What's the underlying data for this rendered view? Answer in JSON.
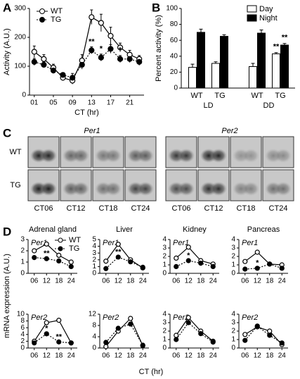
{
  "figure": {
    "panel_labels": [
      "A",
      "B",
      "C",
      "D"
    ],
    "panel_d_ylabel": "mRNA expression (A.U.)",
    "panel_d_xlabel": "CT (hr)"
  },
  "panel_c": {
    "genes": [
      "Per1",
      "Per2"
    ],
    "rows": [
      "WT",
      "TG"
    ],
    "times": [
      "CT06",
      "CT12",
      "CT18",
      "CT24"
    ]
  },
  "chart_data": [
    {
      "type": "line",
      "ylabel": "Activity (A.U.)",
      "xlabel": "CT (hr)",
      "x": [
        1,
        3,
        5,
        7,
        9,
        11,
        13,
        15,
        17,
        19,
        21,
        23
      ],
      "xlim": [
        0,
        24
      ],
      "xticks": [
        {
          "value": 1,
          "label": "01"
        },
        {
          "value": 5,
          "label": "05"
        },
        {
          "value": 9,
          "label": "09"
        },
        13,
        17,
        21
      ],
      "ylim": [
        0,
        300
      ],
      "yticks": [
        0,
        100,
        200,
        300
      ],
      "legend": true,
      "series": [
        {
          "name": "WT",
          "color": "#000000",
          "marker": "open",
          "line_style": "solid",
          "values": [
            150,
            125,
            95,
            60,
            50,
            120,
            270,
            250,
            205,
            165,
            140,
            125
          ],
          "errors": [
            20,
            15,
            12,
            10,
            12,
            20,
            25,
            30,
            30,
            15,
            15,
            12
          ]
        },
        {
          "name": "TG",
          "color": "#000000",
          "marker": "filled",
          "line_style": "dotted",
          "values": [
            115,
            105,
            85,
            70,
            60,
            105,
            155,
            130,
            160,
            125,
            125,
            115
          ],
          "errors": [
            12,
            10,
            10,
            8,
            15,
            15,
            12,
            12,
            15,
            12,
            12,
            12
          ]
        }
      ],
      "annotations": [
        {
          "x": 13,
          "text": "**"
        },
        {
          "x": 15,
          "text": "*"
        },
        {
          "x": 19,
          "text": "*"
        }
      ]
    },
    {
      "type": "bar",
      "ylabel": "Percent activity (%)",
      "categories": [
        "WT",
        "TG",
        "WT",
        "TG"
      ],
      "group_labels": [
        "LD",
        "DD"
      ],
      "ylim": [
        0,
        100
      ],
      "yticks": [
        0,
        20,
        40,
        60,
        80,
        100
      ],
      "legend": true,
      "series": [
        {
          "name": "Day",
          "color": "#ffffff",
          "values": [
            26,
            31,
            27,
            43
          ],
          "errors": [
            4,
            2,
            4,
            1.5
          ]
        },
        {
          "name": "Night",
          "color": "#000000",
          "values": [
            70,
            65,
            69,
            54
          ],
          "errors": [
            4,
            2,
            4,
            2
          ]
        }
      ],
      "annotations": [
        {
          "series": 0,
          "category": 3,
          "text": "**"
        },
        {
          "series": 1,
          "category": 3,
          "text": "**"
        }
      ]
    },
    {
      "type": "line",
      "title": "Adrenal gland",
      "gene": "Per1",
      "categories": [
        "06",
        "12",
        "18",
        "24"
      ],
      "ylim": [
        0,
        3
      ],
      "yticks": [
        0,
        1,
        2,
        3
      ],
      "legend": true,
      "series": [
        {
          "name": "WT",
          "color": "#000000",
          "marker": "open",
          "line_style": "solid",
          "values": [
            2.0,
            2.6,
            1.6,
            1.0
          ]
        },
        {
          "name": "TG",
          "color": "#000000",
          "marker": "filled",
          "line_style": "dotted",
          "values": [
            1.4,
            1.3,
            1.1,
            0.6
          ]
        }
      ],
      "annotations": [
        {
          "x": "12",
          "text": "**"
        }
      ]
    },
    {
      "type": "line",
      "title": "Liver",
      "gene": "Per1",
      "categories": [
        "06",
        "12",
        "18",
        "24"
      ],
      "ylim": [
        0,
        5
      ],
      "yticks": [
        0,
        1,
        2,
        3,
        4,
        5
      ],
      "series": [
        {
          "name": "WT",
          "color": "#000000",
          "marker": "open",
          "line_style": "solid",
          "values": [
            1.8,
            4.3,
            2.0,
            0.8
          ]
        },
        {
          "name": "TG",
          "color": "#000000",
          "marker": "filled",
          "line_style": "dotted",
          "values": [
            0.7,
            2.4,
            1.7,
            0.9
          ]
        }
      ],
      "annotations": [
        {
          "x": "12",
          "text": "**"
        }
      ]
    },
    {
      "type": "line",
      "title": "Kidney",
      "gene": "Per1",
      "categories": [
        "06",
        "12",
        "18",
        "24"
      ],
      "ylim": [
        0,
        4
      ],
      "yticks": [
        0,
        1,
        2,
        3,
        4
      ],
      "series": [
        {
          "name": "WT",
          "color": "#000000",
          "marker": "open",
          "line_style": "solid",
          "values": [
            1.8,
            3.1,
            1.5,
            1.1
          ]
        },
        {
          "name": "TG",
          "color": "#000000",
          "marker": "filled",
          "line_style": "dotted",
          "values": [
            0.8,
            1.5,
            1.2,
            0.8
          ]
        }
      ],
      "annotations": [
        {
          "x": "12",
          "text": "*"
        }
      ]
    },
    {
      "type": "line",
      "title": "Pancreas",
      "gene": "Per1",
      "categories": [
        "06",
        "12",
        "18",
        "24"
      ],
      "ylim": [
        0,
        4
      ],
      "yticks": [
        0,
        1,
        2,
        3,
        4
      ],
      "series": [
        {
          "name": "WT",
          "color": "#000000",
          "marker": "open",
          "line_style": "solid",
          "values": [
            1.4,
            2.5,
            1.1,
            1.0
          ]
        },
        {
          "name": "TG",
          "color": "#000000",
          "marker": "filled",
          "line_style": "dotted",
          "values": [
            0.5,
            0.6,
            1.1,
            0.6
          ]
        }
      ],
      "annotations": [
        {
          "x": "12",
          "text": "*"
        }
      ]
    },
    {
      "type": "line",
      "gene": "Per2",
      "categories": [
        "06",
        "12",
        "18",
        "24"
      ],
      "ylim": [
        0,
        10
      ],
      "yticks": [
        0,
        2,
        4,
        6,
        8,
        10
      ],
      "series": [
        {
          "name": "WT",
          "color": "#000000",
          "marker": "open",
          "line_style": "solid",
          "values": [
            2.0,
            7.5,
            8.2,
            1.5
          ]
        },
        {
          "name": "TG",
          "color": "#000000",
          "marker": "filled",
          "line_style": "dotted",
          "values": [
            1.5,
            4.2,
            1.8,
            1.5
          ]
        }
      ],
      "annotations": [
        {
          "x": "12",
          "text": "*"
        },
        {
          "x": "18",
          "text": "**"
        }
      ]
    },
    {
      "type": "line",
      "gene": "Per2",
      "categories": [
        "06",
        "12",
        "18",
        "24"
      ],
      "ylim": [
        0,
        12
      ],
      "yticks": [
        0,
        4,
        8,
        12
      ],
      "series": [
        {
          "name": "WT",
          "color": "#000000",
          "marker": "open",
          "line_style": "solid",
          "values": [
            0.5,
            6.0,
            10.5,
            0.8
          ]
        },
        {
          "name": "TG",
          "color": "#000000",
          "marker": "filled",
          "line_style": "dotted",
          "values": [
            2.0,
            7.0,
            8.5,
            1.0
          ]
        }
      ]
    },
    {
      "type": "line",
      "gene": "Per2",
      "categories": [
        "06",
        "12",
        "18",
        "24"
      ],
      "ylim": [
        0,
        4
      ],
      "yticks": [
        0,
        1,
        2,
        3,
        4
      ],
      "series": [
        {
          "name": "WT",
          "color": "#000000",
          "marker": "open",
          "line_style": "solid",
          "values": [
            1.5,
            3.6,
            2.0,
            0.8
          ]
        },
        {
          "name": "TG",
          "color": "#000000",
          "marker": "filled",
          "line_style": "dotted",
          "values": [
            1.0,
            3.0,
            1.7,
            0.7
          ]
        }
      ]
    },
    {
      "type": "line",
      "gene": "Per2",
      "categories": [
        "06",
        "12",
        "18",
        "24"
      ],
      "ylim": [
        0,
        4
      ],
      "yticks": [
        0,
        1,
        2,
        3,
        4
      ],
      "series": [
        {
          "name": "WT",
          "color": "#000000",
          "marker": "open",
          "line_style": "solid",
          "values": [
            1.6,
            2.5,
            2.0,
            0.4
          ]
        },
        {
          "name": "TG",
          "color": "#000000",
          "marker": "filled",
          "line_style": "dotted",
          "values": [
            0.9,
            2.6,
            1.5,
            0.6
          ]
        }
      ]
    }
  ]
}
